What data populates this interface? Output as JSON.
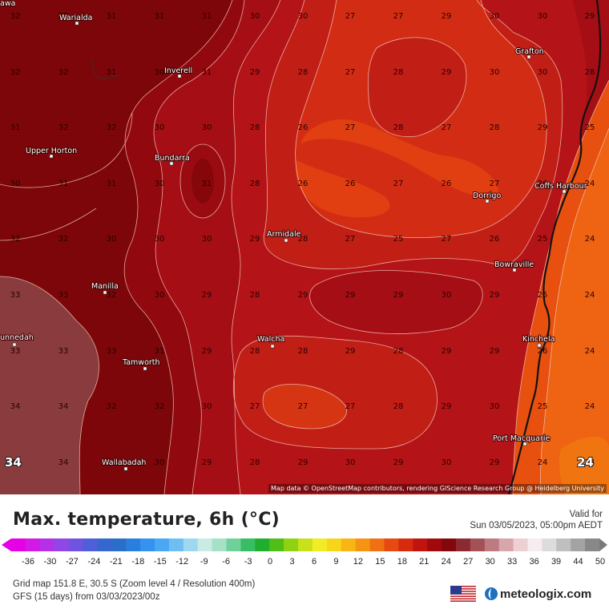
{
  "map": {
    "attribution": "Map data © OpenStreetMap contributors, rendering GIScience Research Group @ Heidelberg University",
    "corner_values": {
      "left": "34",
      "right": "24"
    },
    "cities": [
      {
        "name": "Warialda",
        "id": "warialda"
      },
      {
        "name": "Inverell",
        "id": "inverell"
      },
      {
        "name": "Upper Horton",
        "id": "upper-horton"
      },
      {
        "name": "Bundarra",
        "id": "bundarra"
      },
      {
        "name": "Armidale",
        "id": "armidale"
      },
      {
        "name": "Manilla",
        "id": "manilla"
      },
      {
        "name": "unnedah",
        "id": "gunnedah"
      },
      {
        "name": "Tamworth",
        "id": "tamworth"
      },
      {
        "name": "Walcha",
        "id": "walcha"
      },
      {
        "name": "Wallabadah",
        "id": "wallabadah"
      },
      {
        "name": "Grafton",
        "id": "grafton"
      },
      {
        "name": "Coffs Harbour",
        "id": "coffs-harbour"
      },
      {
        "name": "Dorrigo",
        "id": "dorrigo"
      },
      {
        "name": "Bowraville",
        "id": "bowraville"
      },
      {
        "name": "Kinchela",
        "id": "kinchela"
      },
      {
        "name": "Port Macquarie",
        "id": "port-macquarie"
      },
      {
        "name": "awa",
        "id": "edge-top-left"
      }
    ],
    "grid_rows": [
      [
        "32",
        "32",
        "31",
        "31",
        "31",
        "30",
        "30",
        "27",
        "27",
        "29",
        "30",
        "30",
        "29"
      ],
      [
        "32",
        "32",
        "31",
        "30",
        "31",
        "29",
        "28",
        "27",
        "28",
        "29",
        "30",
        "30",
        "28"
      ],
      [
        "31",
        "32",
        "32",
        "30",
        "30",
        "28",
        "26",
        "27",
        "28",
        "27",
        "28",
        "29",
        "25"
      ],
      [
        "30",
        "31",
        "31",
        "30",
        "31",
        "28",
        "26",
        "26",
        "27",
        "26",
        "27",
        "26",
        "24"
      ],
      [
        "32",
        "32",
        "30",
        "30",
        "30",
        "29",
        "28",
        "27",
        "25",
        "27",
        "26",
        "25",
        "24"
      ],
      [
        "33",
        "33",
        "32",
        "30",
        "29",
        "28",
        "29",
        "29",
        "29",
        "30",
        "29",
        "25",
        "24"
      ],
      [
        "33",
        "33",
        "33",
        "31",
        "29",
        "28",
        "28",
        "29",
        "28",
        "29",
        "29",
        "26",
        "24"
      ],
      [
        "34",
        "34",
        "32",
        "32",
        "30",
        "27",
        "27",
        "27",
        "28",
        "29",
        "30",
        "25",
        "24"
      ],
      [
        "34",
        "34",
        "33",
        "30",
        "29",
        "28",
        "29",
        "30",
        "29",
        "30",
        "29",
        "24",
        "24"
      ]
    ]
  },
  "title": "Max. temperature, 6h (°C)",
  "valid": {
    "label": "Valid for",
    "time": "Sun 03/05/2023, 05:00pm AEDT"
  },
  "legend": {
    "labels": [
      "-36",
      "-30",
      "-27",
      "-24",
      "-21",
      "-18",
      "-15",
      "-12",
      "-9",
      "-6",
      "-3",
      "0",
      "3",
      "6",
      "9",
      "12",
      "15",
      "18",
      "21",
      "24",
      "27",
      "30",
      "33",
      "36",
      "39",
      "44",
      "50"
    ]
  },
  "footer": {
    "grid_info": "Grid map 151.8 E, 30.5 S (Zoom level 4 / Resolution 400m)",
    "run_info": "GFS (15 days) from 03/03/2023/00z",
    "brand": "meteologix.com",
    "flag": "us-flag-icon"
  },
  "colors": {
    "very_hot": "#7a0008",
    "hot": "#9c0f14",
    "warm": "#b8161a",
    "mild": "#cf2a14",
    "cool": "#e24012",
    "coolest": "#ee6412",
    "max_zone": "#8a3b3e"
  }
}
